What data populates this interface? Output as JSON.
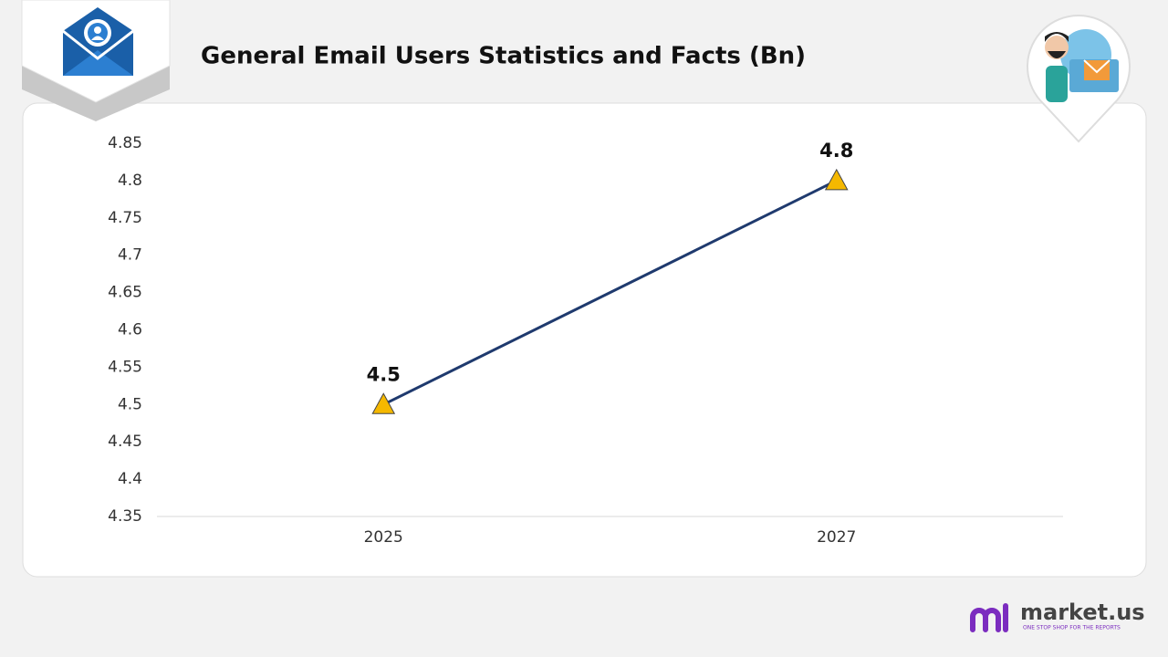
{
  "chart_data": {
    "type": "line",
    "title": "General Email Users Statistics and Facts (Bn)",
    "categories": [
      "2025",
      "2027"
    ],
    "values": [
      4.5,
      4.8
    ],
    "color": "#1f3a6e",
    "marker_color": "#f5b800",
    "ylim": [
      4.35,
      4.85
    ],
    "yticks": [
      4.35,
      4.4,
      4.45,
      4.5,
      4.55,
      4.6,
      4.65,
      4.7,
      4.75,
      4.8,
      4.85
    ],
    "grid": false
  },
  "brand": {
    "name": "market.us",
    "tagline": "ONE STOP SHOP FOR THE REPORTS"
  }
}
